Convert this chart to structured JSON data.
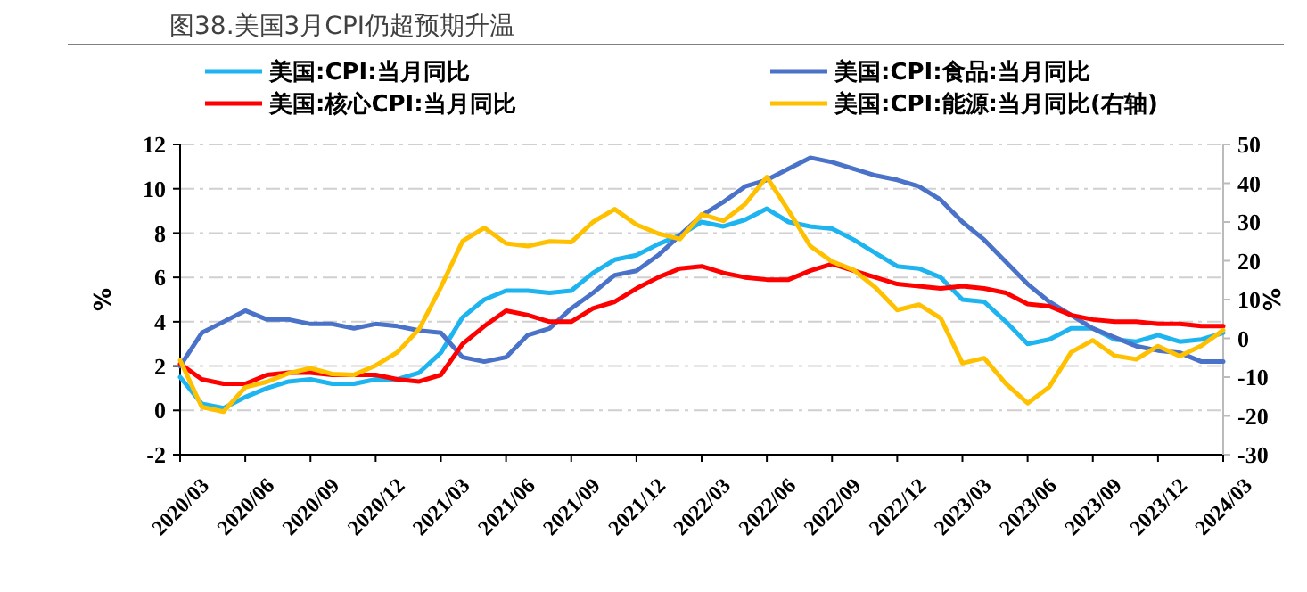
{
  "chart_data": {
    "type": "line",
    "title": "图38.美国3月CPI仍超预期升温",
    "ylabel": "%",
    "y2label": "%",
    "categories": [
      "2020/03",
      null,
      null,
      "2020/06",
      null,
      null,
      "2020/09",
      null,
      null,
      "2020/12",
      null,
      null,
      "2021/03",
      null,
      null,
      "2021/06",
      null,
      null,
      "2021/09",
      null,
      null,
      "2021/12",
      null,
      null,
      "2022/03",
      null,
      null,
      "2022/06",
      null,
      null,
      "2022/09",
      null,
      null,
      "2022/12",
      null,
      null,
      "2023/03",
      null,
      null,
      "2023/06",
      null,
      null,
      "2023/09",
      null,
      null,
      "2023/12",
      null,
      null,
      "2024/03"
    ],
    "series": [
      {
        "name": "美国:CPI:当月同比",
        "color": "#1eb4f0",
        "values": [
          1.5,
          0.3,
          0.1,
          0.6,
          1.0,
          1.3,
          1.4,
          1.2,
          1.2,
          1.4,
          1.4,
          1.7,
          2.6,
          4.2,
          5.0,
          5.4,
          5.4,
          5.3,
          5.4,
          6.2,
          6.8,
          7.0,
          7.5,
          7.9,
          8.5,
          8.3,
          8.6,
          9.1,
          8.5,
          8.3,
          8.2,
          7.7,
          7.1,
          6.5,
          6.4,
          6.0,
          5.0,
          4.9,
          4.0,
          3.0,
          3.2,
          3.7,
          3.7,
          3.2,
          3.1,
          3.4,
          3.1,
          3.2,
          3.5
        ]
      },
      {
        "name": "美国:CPI:食品:当月同比",
        "color": "#4a72c8",
        "values": [
          2.0,
          3.5,
          4.0,
          4.5,
          4.1,
          4.1,
          3.9,
          3.9,
          3.7,
          3.9,
          3.8,
          3.6,
          3.5,
          2.4,
          2.2,
          2.4,
          3.4,
          3.7,
          4.6,
          5.3,
          6.1,
          6.3,
          7.0,
          7.9,
          8.8,
          9.4,
          10.1,
          10.4,
          10.9,
          11.4,
          11.2,
          10.9,
          10.6,
          10.4,
          10.1,
          9.5,
          8.5,
          7.7,
          6.7,
          5.7,
          4.9,
          4.3,
          3.7,
          3.3,
          2.9,
          2.7,
          2.6,
          2.2,
          2.2
        ]
      },
      {
        "name": "美国:核心CPI:当月同比",
        "color": "#ff0000",
        "values": [
          2.1,
          1.4,
          1.2,
          1.2,
          1.6,
          1.7,
          1.7,
          1.6,
          1.6,
          1.6,
          1.4,
          1.3,
          1.6,
          3.0,
          3.8,
          4.5,
          4.3,
          4.0,
          4.0,
          4.6,
          4.9,
          5.5,
          6.0,
          6.4,
          6.5,
          6.2,
          6.0,
          5.9,
          5.9,
          6.3,
          6.6,
          6.3,
          6.0,
          5.7,
          5.6,
          5.5,
          5.6,
          5.5,
          5.3,
          4.8,
          4.7,
          4.3,
          4.1,
          4.0,
          4.0,
          3.9,
          3.9,
          3.8,
          3.8
        ]
      },
      {
        "name": "美国:CPI:能源:当月同比(右轴)",
        "color": "#ffc000",
        "axis": "y2",
        "values": [
          -5.7,
          -17.7,
          -18.9,
          -12.6,
          -11.2,
          -9.0,
          -7.7,
          -9.2,
          -9.4,
          -7.0,
          -3.6,
          2.4,
          13.2,
          25.1,
          28.5,
          24.5,
          23.8,
          25.0,
          24.8,
          30.0,
          33.3,
          29.3,
          27.0,
          25.6,
          32.0,
          30.3,
          34.6,
          41.6,
          32.9,
          23.8,
          19.8,
          17.6,
          13.1,
          7.3,
          8.7,
          5.2,
          -6.4,
          -5.1,
          -11.7,
          -16.7,
          -12.5,
          -3.6,
          -0.5,
          -4.5,
          -5.4,
          -2.0,
          -4.6,
          -1.9,
          2.1
        ]
      }
    ],
    "ylim": [
      -2,
      12
    ],
    "yticks": [
      -2,
      0,
      2,
      4,
      6,
      8,
      10,
      12
    ],
    "y2lim": [
      -30,
      50
    ],
    "y2ticks": [
      -30,
      -20,
      -10,
      0,
      10,
      20,
      30,
      40,
      50
    ],
    "grid": "y",
    "legend": "top",
    "marker": "none",
    "line_style": "solid"
  }
}
